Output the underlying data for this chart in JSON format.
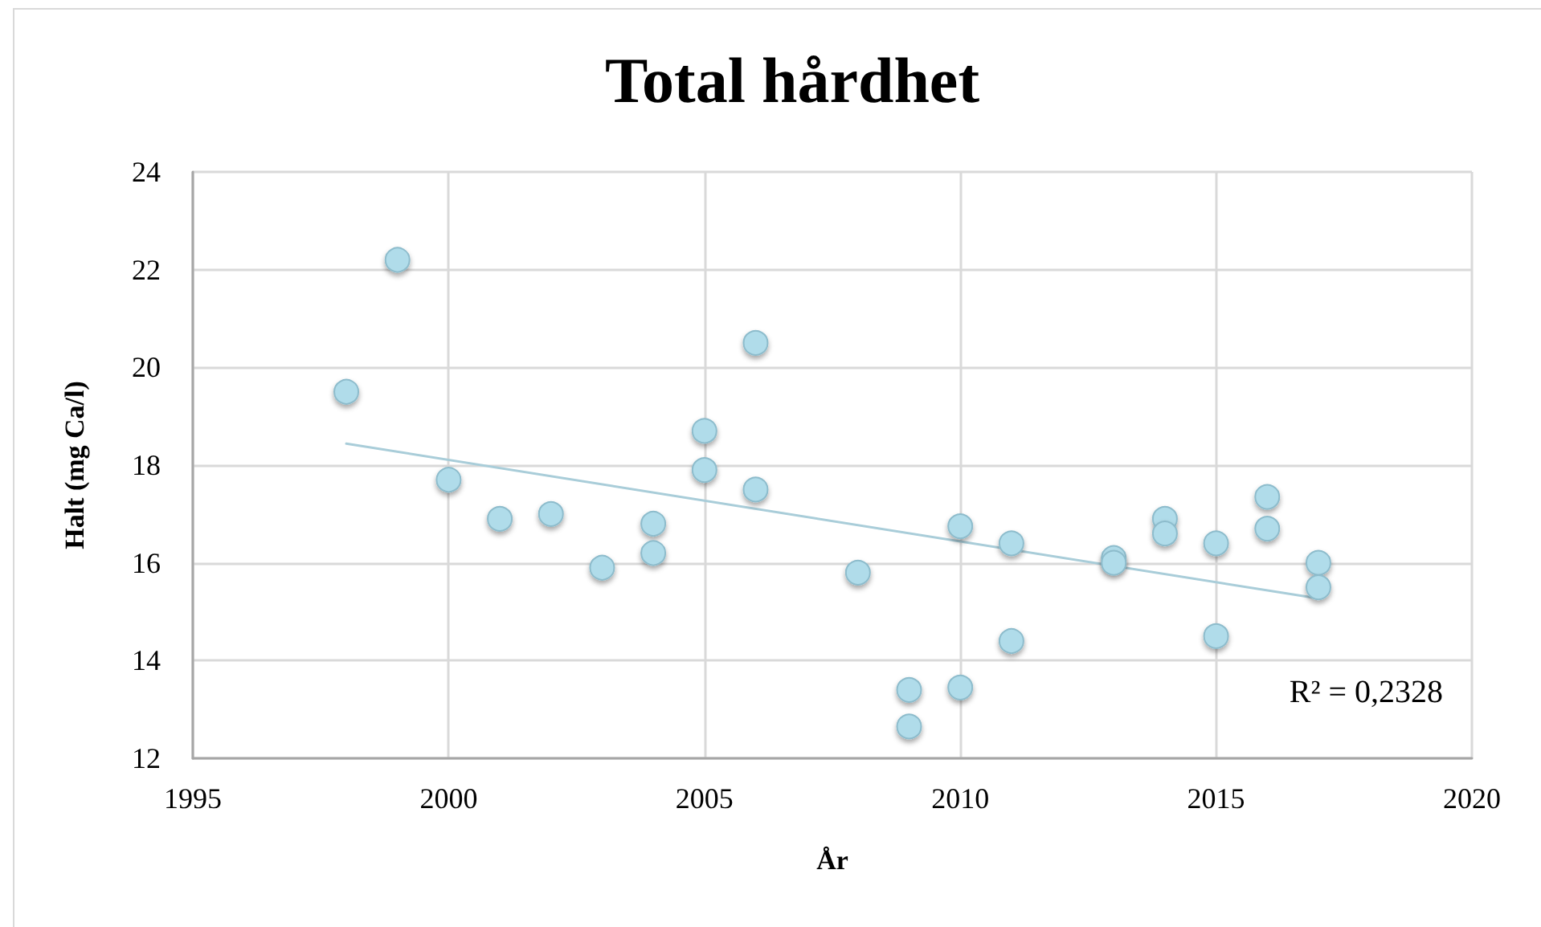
{
  "chart_data": {
    "type": "scatter",
    "title": "Total hårdhet",
    "xlabel": "År",
    "ylabel": "Halt (mg Ca/l)",
    "xlim": [
      1995,
      2020
    ],
    "xticks": [
      1995,
      2000,
      2005,
      2010,
      2015,
      2020
    ],
    "ylim": [
      12,
      24
    ],
    "yticks": [
      12,
      14,
      16,
      18,
      20,
      22,
      24
    ],
    "grid": true,
    "annotations": [
      "R² = 0,2328"
    ],
    "series": [
      {
        "type": "scatter",
        "color": "#b0dcea",
        "marker": "circle",
        "x": [
          1998,
          1999,
          2000,
          2001,
          2002,
          2003,
          2004,
          2004,
          2005,
          2005,
          2006,
          2006,
          2008,
          2009,
          2009,
          2010,
          2010,
          2011,
          2011,
          2013,
          2013,
          2014,
          2014,
          2015,
          2015,
          2016,
          2016,
          2017,
          2017
        ],
        "values": [
          19.5,
          22.2,
          17.7,
          16.9,
          17.0,
          15.9,
          16.8,
          16.2,
          18.7,
          17.9,
          20.5,
          17.5,
          15.8,
          13.4,
          12.65,
          16.75,
          13.45,
          16.4,
          14.4,
          16.1,
          16.0,
          16.9,
          16.6,
          16.4,
          14.5,
          17.35,
          16.7,
          16.0,
          15.5
        ]
      },
      {
        "type": "line",
        "color": "#a9cdd9",
        "marker": "none",
        "x": [
          1998,
          2017
        ],
        "values": [
          18.44,
          15.27
        ]
      }
    ]
  }
}
